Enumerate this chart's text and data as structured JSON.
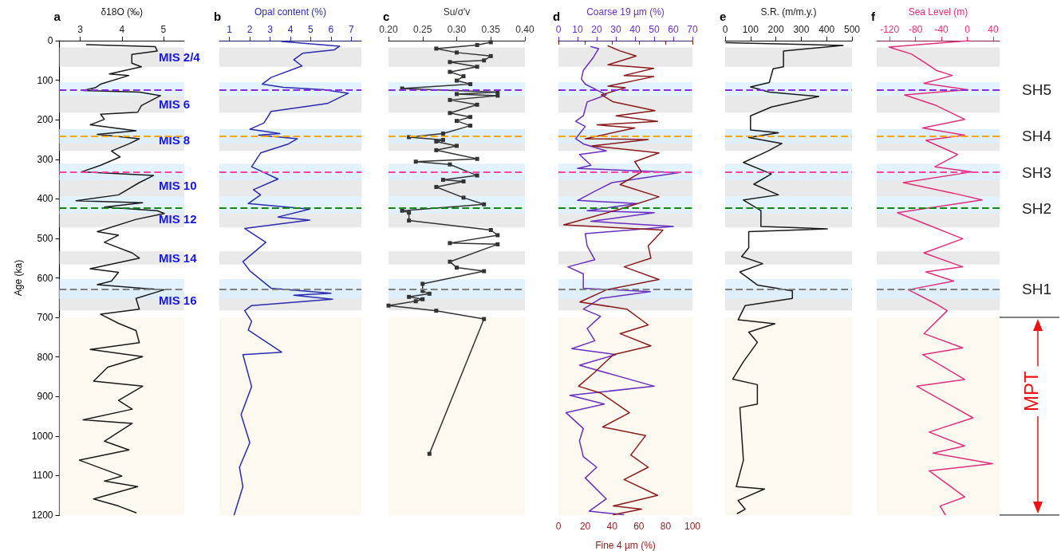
{
  "chart_data": [
    {
      "type": "line",
      "title": "a",
      "xlabel": "δ18O (‰)",
      "ylabel": "Age (ka)",
      "xlim": [
        2.5,
        5.5
      ],
      "xticks": [
        3,
        4,
        5
      ],
      "ylim": [
        1200,
        0
      ],
      "yticks": [
        0,
        100,
        200,
        300,
        400,
        500,
        600,
        700,
        800,
        900,
        1000,
        1100,
        1200
      ],
      "series": [
        {
          "color": "#1a1a1a",
          "x": [
            3.15,
            4.8,
            4.85,
            4.24,
            4.24,
            4.47,
            4.08,
            3.7,
            4.17,
            3.49,
            3.36,
            3.07,
            4.42,
            4.93,
            4.47,
            4.38,
            3.49,
            3.58,
            3.24,
            4.34,
            3.41,
            4.42,
            4.17,
            3.75,
            3.96,
            3.49,
            3.03,
            4.76,
            4.42,
            3.92,
            2.9,
            4.5,
            3.58,
            4.85,
            5.02,
            4.34,
            3.41,
            3.92,
            3.58,
            4.25,
            4.42,
            3.24,
            3.92,
            3.75,
            3.41,
            4.59,
            5.02,
            4.34,
            4.42,
            3.49,
            3.92,
            4.34,
            4.42,
            3.24,
            4.5,
            3.66,
            3.32,
            4.5,
            3.92,
            4.25,
            3.07,
            4.25,
            3.58,
            4.17,
            2.98,
            4.0,
            3.58,
            4.38,
            3.32,
            3.92,
            4.34
          ],
          "values": [
            10,
            15,
            26,
            35,
            57,
            66,
            75,
            84,
            88,
            110,
            119,
            126,
            130,
            139,
            164,
            181,
            186,
            199,
            213,
            228,
            237,
            248,
            261,
            279,
            294,
            315,
            332,
            341,
            359,
            390,
            405,
            410,
            421,
            430,
            437,
            452,
            483,
            492,
            510,
            537,
            550,
            577,
            586,
            608,
            617,
            627,
            630,
            652,
            679,
            692,
            715,
            733,
            764,
            781,
            799,
            826,
            861,
            874,
            910,
            932,
            959,
            968,
            1013,
            1035,
            1061,
            1101,
            1114,
            1128,
            1159,
            1177,
            1194
          ]
        }
      ],
      "bands": [
        {
          "axis": "y",
          "from": 700,
          "to": 1200,
          "color": "#fbf9ec"
        },
        {
          "axis": "y",
          "from": 17,
          "to": 66,
          "color": "#e3e3e3",
          "label": "MIS 2/4"
        },
        {
          "axis": "y",
          "from": 139,
          "to": 182,
          "color": "#e3e3e3",
          "label": "MIS 6"
        },
        {
          "axis": "y",
          "from": 224,
          "to": 279,
          "color": "#e3e3e3",
          "label": "MIS 8"
        },
        {
          "axis": "y",
          "from": 339,
          "to": 395,
          "color": "#e3e3e3",
          "label": "MIS 10"
        },
        {
          "axis": "y",
          "from": 430,
          "to": 472,
          "color": "#e3e3e3",
          "label": "MIS 12"
        },
        {
          "axis": "y",
          "from": 533,
          "to": 566,
          "color": "#e3e3e3",
          "label": "MIS 14"
        },
        {
          "axis": "y",
          "from": 630,
          "to": 682,
          "color": "#e3e3e3",
          "label": "MIS 16"
        },
        {
          "axis": "y",
          "from": 105,
          "to": 139,
          "color": "#dcefff"
        },
        {
          "axis": "y",
          "from": 224,
          "to": 260,
          "color": "#dcefff"
        },
        {
          "axis": "y",
          "from": 311,
          "to": 353,
          "color": "#dcefff"
        },
        {
          "axis": "y",
          "from": 395,
          "to": 438,
          "color": "#dcefff"
        },
        {
          "axis": "y",
          "from": 603,
          "to": 653,
          "color": "#dcefff"
        }
      ],
      "ref_lines": [
        {
          "axis": "y",
          "value": 125,
          "color": "#8a2be2",
          "line_style": "dashed"
        },
        {
          "axis": "y",
          "value": 242,
          "color": "#ffa500",
          "line_style": "dashed"
        },
        {
          "axis": "y",
          "value": 333,
          "color": "#ff44aa",
          "line_style": "dashed"
        },
        {
          "axis": "y",
          "value": 424,
          "color": "#118811",
          "line_style": "dashed"
        },
        {
          "axis": "y",
          "value": 629,
          "color": "#808080",
          "line_style": "dashed"
        }
      ]
    },
    {
      "type": "line",
      "title": "b",
      "xlabel": "Opal content (%)",
      "xlim": [
        0.5,
        7.5
      ],
      "xticks": [
        1,
        2,
        3,
        4,
        5,
        6,
        7
      ],
      "ylim": [
        1200,
        0
      ],
      "yticks": [
        0,
        100,
        200,
        300,
        400,
        500,
        600,
        700,
        800,
        900,
        1000,
        1100,
        1200
      ],
      "tick_labels": "x",
      "series": [
        {
          "color": "#2b2bb0",
          "x": [
            3.57,
            6.43,
            6.17,
            4.6,
            4.17,
            4.57,
            3.05,
            2.61,
            3.65,
            5.65,
            6.86,
            5.82,
            3.05,
            2.7,
            2.0,
            3.48,
            2.44,
            4.35,
            3.91,
            2.53,
            2.09,
            3.39,
            2.18,
            2.53,
            1.92,
            4.95,
            3.39,
            4.95,
            1.75,
            2.79,
            1.66,
            2.0,
            3.05,
            6.0,
            4.17,
            6.08,
            2.09,
            1.75,
            2.09,
            1.92,
            3.57,
            1.66,
            2.09,
            1.57,
            2.0,
            1.49,
            1.66,
            1.23
          ],
          "values": [
            2,
            14,
            23,
            32,
            48,
            64,
            93,
            110,
            118,
            124,
            133,
            159,
            179,
            208,
            224,
            235,
            239,
            248,
            261,
            284,
            319,
            350,
            377,
            390,
            412,
            426,
            446,
            454,
            475,
            510,
            559,
            582,
            626,
            639,
            644,
            654,
            670,
            683,
            710,
            732,
            788,
            794,
            875,
            946,
            1017,
            1079,
            1128,
            1199
          ]
        }
      ],
      "bands": [
        {
          "axis": "y",
          "from": 700,
          "to": 1200,
          "color": "#fbf9ec"
        },
        {
          "axis": "y",
          "from": 17,
          "to": 66,
          "color": "#e3e3e3"
        },
        {
          "axis": "y",
          "from": 139,
          "to": 182,
          "color": "#e3e3e3"
        },
        {
          "axis": "y",
          "from": 224,
          "to": 279,
          "color": "#e3e3e3"
        },
        {
          "axis": "y",
          "from": 339,
          "to": 395,
          "color": "#e3e3e3"
        },
        {
          "axis": "y",
          "from": 430,
          "to": 472,
          "color": "#e3e3e3"
        },
        {
          "axis": "y",
          "from": 533,
          "to": 566,
          "color": "#e3e3e3"
        },
        {
          "axis": "y",
          "from": 630,
          "to": 682,
          "color": "#e3e3e3"
        },
        {
          "axis": "y",
          "from": 105,
          "to": 139,
          "color": "#dcefff"
        },
        {
          "axis": "y",
          "from": 224,
          "to": 260,
          "color": "#dcefff"
        },
        {
          "axis": "y",
          "from": 311,
          "to": 353,
          "color": "#dcefff"
        },
        {
          "axis": "y",
          "from": 395,
          "to": 438,
          "color": "#dcefff"
        },
        {
          "axis": "y",
          "from": 603,
          "to": 653,
          "color": "#dcefff"
        }
      ],
      "ref_lines": [
        {
          "axis": "y",
          "value": 125,
          "color": "#8a2be2",
          "line_style": "dashed"
        },
        {
          "axis": "y",
          "value": 242,
          "color": "#ffa500",
          "line_style": "dashed"
        },
        {
          "axis": "y",
          "value": 333,
          "color": "#ff44aa",
          "line_style": "dashed"
        },
        {
          "axis": "y",
          "value": 424,
          "color": "#118811",
          "line_style": "dashed"
        },
        {
          "axis": "y",
          "value": 629,
          "color": "#808080",
          "line_style": "dashed"
        }
      ]
    },
    {
      "type": "line",
      "title": "c",
      "xlabel": "Su/σ'v",
      "marker": "square",
      "xlim": [
        0.2,
        0.4
      ],
      "xticks": [
        {
          "value": 0.2,
          "label": "0.20"
        },
        {
          "value": 0.25,
          "label": "0.25"
        },
        {
          "value": 0.3,
          "label": "0.30"
        },
        {
          "value": 0.35,
          "label": "0.35"
        },
        {
          "value": 0.4,
          "label": "0.40"
        }
      ],
      "ylim": [
        1200,
        0
      ],
      "yticks": [
        0,
        100,
        200,
        300,
        400,
        500,
        600,
        700,
        800,
        900,
        1000,
        1100,
        1200
      ],
      "tick_labels": "x",
      "series": [
        {
          "color": "#333333",
          "x": [
            0.35,
            0.33,
            0.27,
            0.3,
            0.35,
            0.34,
            0.29,
            0.33,
            0.29,
            0.31,
            0.3,
            0.32,
            0.22,
            0.36,
            0.3,
            0.36,
            0.29,
            0.33,
            0.29,
            0.32,
            0.3,
            0.32,
            0.28,
            0.23,
            0.28,
            0.27,
            0.3,
            0.27,
            0.33,
            0.24,
            0.29,
            0.33,
            0.28,
            0.31,
            0.27,
            0.31,
            0.34,
            0.22,
            0.23,
            0.23,
            0.35,
            0.36,
            0.29,
            0.36,
            0.29,
            0.3,
            0.34,
            0.25,
            0.25,
            0.26,
            0.23,
            0.25,
            0.24,
            0.2,
            0.27,
            0.34,
            0.26
          ],
          "values": [
            4,
            11,
            20,
            30,
            39,
            50,
            54,
            66,
            79,
            90,
            101,
            110,
            121,
            130,
            135,
            139,
            150,
            162,
            183,
            193,
            203,
            215,
            235,
            244,
            251,
            255,
            266,
            277,
            299,
            306,
            313,
            341,
            352,
            356,
            370,
            397,
            414,
            430,
            435,
            455,
            479,
            492,
            512,
            515,
            559,
            574,
            583,
            615,
            633,
            640,
            648,
            654,
            659,
            670,
            683,
            704,
            1045
          ]
        }
      ],
      "bands": [
        {
          "axis": "y",
          "from": 700,
          "to": 1200,
          "color": "#fbf9ec"
        },
        {
          "axis": "y",
          "from": 17,
          "to": 66,
          "color": "#e3e3e3"
        },
        {
          "axis": "y",
          "from": 139,
          "to": 182,
          "color": "#e3e3e3"
        },
        {
          "axis": "y",
          "from": 224,
          "to": 279,
          "color": "#e3e3e3"
        },
        {
          "axis": "y",
          "from": 339,
          "to": 395,
          "color": "#e3e3e3"
        },
        {
          "axis": "y",
          "from": 430,
          "to": 472,
          "color": "#e3e3e3"
        },
        {
          "axis": "y",
          "from": 533,
          "to": 566,
          "color": "#e3e3e3"
        },
        {
          "axis": "y",
          "from": 630,
          "to": 682,
          "color": "#e3e3e3"
        },
        {
          "axis": "y",
          "from": 105,
          "to": 139,
          "color": "#dcefff"
        },
        {
          "axis": "y",
          "from": 224,
          "to": 260,
          "color": "#dcefff"
        },
        {
          "axis": "y",
          "from": 311,
          "to": 353,
          "color": "#dcefff"
        },
        {
          "axis": "y",
          "from": 395,
          "to": 438,
          "color": "#dcefff"
        },
        {
          "axis": "y",
          "from": 603,
          "to": 653,
          "color": "#dcefff"
        }
      ],
      "ref_lines": [
        {
          "axis": "y",
          "value": 125,
          "color": "#8a2be2",
          "line_style": "dashed"
        },
        {
          "axis": "y",
          "value": 242,
          "color": "#ffa500",
          "line_style": "dashed"
        },
        {
          "axis": "y",
          "value": 333,
          "color": "#ff44aa",
          "line_style": "dashed"
        },
        {
          "axis": "y",
          "value": 424,
          "color": "#118811",
          "line_style": "dashed"
        },
        {
          "axis": "y",
          "value": 629,
          "color": "#808080",
          "line_style": "dashed"
        }
      ]
    },
    {
      "type": "line",
      "title": "d",
      "x2label": "Coarse 19 µm (%)",
      "xlabel": "Fine 4 µm (%)",
      "x2lim": [
        0,
        70
      ],
      "x2ticks": [
        0,
        10,
        20,
        30,
        40,
        50,
        60,
        70
      ],
      "xlim": [
        0,
        100
      ],
      "xticks": [
        0,
        20,
        40,
        60,
        80,
        100
      ],
      "ylim": [
        1200,
        0
      ],
      "yticks": [
        0,
        100,
        200,
        300,
        400,
        500,
        600,
        700,
        800,
        900,
        1000,
        1100,
        1200
      ],
      "tick_labels": "x",
      "series": [
        {
          "color": "#6a2fc0",
          "axis": "x2",
          "x": [
            17,
            21,
            18,
            13,
            12,
            14,
            25,
            15,
            13,
            9,
            14,
            9,
            13,
            25,
            11,
            17,
            10,
            63,
            28,
            19,
            10,
            41,
            15,
            50,
            17,
            60,
            14,
            15,
            19,
            5,
            13,
            13,
            48,
            22,
            13,
            22,
            15,
            19,
            7,
            30,
            11,
            50,
            6,
            24,
            4,
            13,
            11,
            13,
            20,
            14,
            25,
            16,
            34
          ],
          "values": [
            15,
            20,
            44,
            75,
            97,
            110,
            137,
            155,
            190,
            204,
            217,
            248,
            261,
            279,
            288,
            315,
            323,
            334,
            359,
            381,
            404,
            412,
            430,
            435,
            457,
            470,
            488,
            519,
            554,
            572,
            590,
            626,
            635,
            652,
            679,
            697,
            728,
            759,
            779,
            794,
            821,
            874,
            897,
            919,
            941,
            981,
            1012,
            1052,
            1079,
            1106,
            1159,
            1190,
            1199
          ]
        },
        {
          "color": "#8b1a1a",
          "x": [
            37,
            46,
            58,
            37,
            71,
            49,
            71,
            37,
            50,
            32,
            41,
            72,
            43,
            74,
            29,
            57,
            20,
            67,
            25,
            75,
            57,
            62,
            46,
            75,
            46,
            4,
            78,
            67,
            69,
            49,
            75,
            36,
            16,
            51,
            67,
            46,
            69,
            41,
            27,
            15,
            32,
            53,
            33,
            65,
            54,
            67,
            49,
            74,
            41,
            62,
            41
          ],
          "values": [
            13,
            26,
            39,
            61,
            70,
            88,
            91,
            115,
            119,
            137,
            155,
            177,
            190,
            204,
            213,
            221,
            248,
            250,
            266,
            284,
            306,
            332,
            364,
            395,
            426,
            466,
            479,
            519,
            550,
            572,
            604,
            630,
            661,
            679,
            719,
            741,
            772,
            794,
            839,
            874,
            892,
            941,
            977,
            999,
            1048,
            1079,
            1110,
            1150,
            1177,
            1185,
            1199
          ]
        }
      ],
      "bands": [
        {
          "axis": "y",
          "from": 700,
          "to": 1200,
          "color": "#fbf9ec"
        },
        {
          "axis": "y",
          "from": 17,
          "to": 66,
          "color": "#e3e3e3"
        },
        {
          "axis": "y",
          "from": 139,
          "to": 182,
          "color": "#e3e3e3"
        },
        {
          "axis": "y",
          "from": 224,
          "to": 279,
          "color": "#e3e3e3"
        },
        {
          "axis": "y",
          "from": 339,
          "to": 395,
          "color": "#e3e3e3"
        },
        {
          "axis": "y",
          "from": 430,
          "to": 472,
          "color": "#e3e3e3"
        },
        {
          "axis": "y",
          "from": 533,
          "to": 566,
          "color": "#e3e3e3"
        },
        {
          "axis": "y",
          "from": 630,
          "to": 682,
          "color": "#e3e3e3"
        },
        {
          "axis": "y",
          "from": 105,
          "to": 139,
          "color": "#dcefff"
        },
        {
          "axis": "y",
          "from": 224,
          "to": 260,
          "color": "#dcefff"
        },
        {
          "axis": "y",
          "from": 311,
          "to": 353,
          "color": "#dcefff"
        },
        {
          "axis": "y",
          "from": 395,
          "to": 438,
          "color": "#dcefff"
        },
        {
          "axis": "y",
          "from": 603,
          "to": 653,
          "color": "#dcefff"
        }
      ],
      "ref_lines": [
        {
          "axis": "y",
          "value": 125,
          "color": "#8a2be2",
          "line_style": "dashed"
        },
        {
          "axis": "y",
          "value": 242,
          "color": "#ffa500",
          "line_style": "dashed"
        },
        {
          "axis": "y",
          "value": 333,
          "color": "#ff44aa",
          "line_style": "dashed"
        },
        {
          "axis": "y",
          "value": 424,
          "color": "#118811",
          "line_style": "dashed"
        },
        {
          "axis": "y",
          "value": 629,
          "color": "#808080",
          "line_style": "dashed"
        }
      ]
    },
    {
      "type": "line",
      "title": "e",
      "xlabel": "S.R. (m/m.y.)",
      "xlim": [
        0,
        500
      ],
      "xticks": [
        0,
        100,
        200,
        300,
        400,
        500
      ],
      "ylim": [
        1200,
        0
      ],
      "yticks": [
        0,
        100,
        200,
        300,
        400,
        500,
        600,
        700,
        800,
        900,
        1000,
        1100,
        1200
      ],
      "tick_labels": "x",
      "series": [
        {
          "color": "#1a1a1a",
          "x": [
            3,
            465,
            230,
            230,
            189,
            174,
            100,
            174,
            369,
            182,
            100,
            100,
            210,
            93,
            224,
            169,
            72,
            182,
            113,
            210,
            72,
            141,
            141,
            403,
            93,
            93,
            65,
            148,
            58,
            127,
            265,
            265,
            79,
            51,
            196,
            93,
            127,
            72,
            30,
            127,
            127,
            58,
            72,
            44,
            155,
            51,
            79,
            48
          ],
          "values": [
            5,
            12,
            26,
            66,
            71,
            106,
            117,
            130,
            141,
            168,
            190,
            226,
            233,
            245,
            260,
            279,
            308,
            337,
            363,
            390,
            403,
            430,
            470,
            476,
            483,
            524,
            546,
            564,
            585,
            618,
            633,
            652,
            670,
            706,
            716,
            737,
            763,
            812,
            856,
            870,
            919,
            928,
            1061,
            1128,
            1134,
            1163,
            1185,
            1196
          ]
        }
      ],
      "bands": [
        {
          "axis": "y",
          "from": 700,
          "to": 1200,
          "color": "#fbf9ec"
        },
        {
          "axis": "y",
          "from": 17,
          "to": 66,
          "color": "#e3e3e3"
        },
        {
          "axis": "y",
          "from": 139,
          "to": 182,
          "color": "#e3e3e3"
        },
        {
          "axis": "y",
          "from": 224,
          "to": 279,
          "color": "#e3e3e3"
        },
        {
          "axis": "y",
          "from": 339,
          "to": 395,
          "color": "#e3e3e3"
        },
        {
          "axis": "y",
          "from": 430,
          "to": 472,
          "color": "#e3e3e3"
        },
        {
          "axis": "y",
          "from": 533,
          "to": 566,
          "color": "#e3e3e3"
        },
        {
          "axis": "y",
          "from": 630,
          "to": 682,
          "color": "#e3e3e3"
        },
        {
          "axis": "y",
          "from": 105,
          "to": 139,
          "color": "#dcefff"
        },
        {
          "axis": "y",
          "from": 224,
          "to": 260,
          "color": "#dcefff"
        },
        {
          "axis": "y",
          "from": 311,
          "to": 353,
          "color": "#dcefff"
        },
        {
          "axis": "y",
          "from": 395,
          "to": 438,
          "color": "#dcefff"
        },
        {
          "axis": "y",
          "from": 603,
          "to": 653,
          "color": "#dcefff"
        }
      ],
      "ref_lines": [
        {
          "axis": "y",
          "value": 125,
          "color": "#8a2be2",
          "line_style": "dashed"
        },
        {
          "axis": "y",
          "value": 242,
          "color": "#ffa500",
          "line_style": "dashed"
        },
        {
          "axis": "y",
          "value": 333,
          "color": "#ff44aa",
          "line_style": "dashed"
        },
        {
          "axis": "y",
          "value": 424,
          "color": "#118811",
          "line_style": "dashed"
        },
        {
          "axis": "y",
          "value": 629,
          "color": "#808080",
          "line_style": "dashed"
        }
      ]
    },
    {
      "type": "line",
      "title": "f",
      "xlabel": "Sea Level (m)",
      "xlim": [
        -140,
        50
      ],
      "xticks": [
        -120,
        -80,
        -40,
        0,
        40
      ],
      "ylim": [
        1200,
        0
      ],
      "yticks": [
        0,
        100,
        200,
        300,
        400,
        500,
        600,
        700,
        800,
        900,
        1000,
        1100,
        1200
      ],
      "tick_labels": "x",
      "series": [
        {
          "color": "#e0307a",
          "x": [
            3,
            -121,
            -86,
            -64,
            -48,
            -23,
            -67,
            1,
            -97,
            -48,
            -4,
            -69,
            -4,
            -64,
            -15,
            -50,
            7,
            -99,
            -21,
            23,
            -108,
            -61,
            -7,
            -67,
            -7,
            -64,
            -21,
            -91,
            -48,
            -31,
            -67,
            -7,
            -69,
            -4,
            -78,
            9,
            -59,
            -4,
            -53,
            39,
            -59,
            -4,
            -42,
            -34
          ],
          "values": [
            0,
            16,
            34,
            57,
            75,
            88,
            108,
            124,
            137,
            164,
            199,
            221,
            239,
            252,
            288,
            319,
            332,
            359,
            386,
            403,
            435,
            466,
            501,
            537,
            572,
            585,
            608,
            630,
            666,
            683,
            741,
            777,
            794,
            857,
            874,
            954,
            990,
            1025,
            1043,
            1070,
            1088,
            1154,
            1177,
            1199
          ]
        }
      ],
      "bands": [
        {
          "axis": "y",
          "from": 700,
          "to": 1200,
          "color": "#fbf9ec",
          "label": "MPT"
        },
        {
          "axis": "y",
          "from": 17,
          "to": 66,
          "color": "#e3e3e3"
        },
        {
          "axis": "y",
          "from": 139,
          "to": 182,
          "color": "#e3e3e3"
        },
        {
          "axis": "y",
          "from": 224,
          "to": 279,
          "color": "#e3e3e3"
        },
        {
          "axis": "y",
          "from": 339,
          "to": 395,
          "color": "#e3e3e3"
        },
        {
          "axis": "y",
          "from": 430,
          "to": 472,
          "color": "#e3e3e3"
        },
        {
          "axis": "y",
          "from": 533,
          "to": 566,
          "color": "#e3e3e3"
        },
        {
          "axis": "y",
          "from": 630,
          "to": 682,
          "color": "#e3e3e3"
        },
        {
          "axis": "y",
          "from": 105,
          "to": 139,
          "color": "#dcefff"
        },
        {
          "axis": "y",
          "from": 224,
          "to": 260,
          "color": "#dcefff"
        },
        {
          "axis": "y",
          "from": 311,
          "to": 353,
          "color": "#dcefff"
        },
        {
          "axis": "y",
          "from": 395,
          "to": 438,
          "color": "#dcefff"
        },
        {
          "axis": "y",
          "from": 603,
          "to": 653,
          "color": "#dcefff"
        }
      ],
      "ref_lines": [
        {
          "axis": "y",
          "value": 125,
          "color": "#8a2be2",
          "line_style": "dashed",
          "label": "SH5"
        },
        {
          "axis": "y",
          "value": 242,
          "color": "#ffa500",
          "line_style": "dashed",
          "label": "SH4"
        },
        {
          "axis": "y",
          "value": 333,
          "color": "#ff44aa",
          "line_style": "dashed",
          "label": "SH3"
        },
        {
          "axis": "y",
          "value": 424,
          "color": "#118811",
          "line_style": "dashed",
          "label": "SH2"
        },
        {
          "axis": "y",
          "value": 629,
          "color": "#808080",
          "line_style": "dashed",
          "label": "SH1"
        }
      ]
    }
  ]
}
